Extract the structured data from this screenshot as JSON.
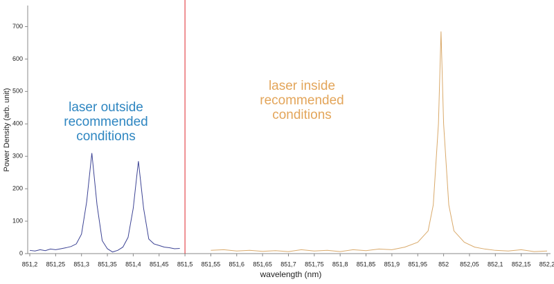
{
  "chart_data": {
    "type": "line",
    "xlabel": "wavelength (nm)",
    "ylabel": "Power Density (arb. unit)",
    "xlim": [
      851.2,
      852.2
    ],
    "ylim": [
      0,
      765
    ],
    "xticks": [
      {
        "value": 851.2,
        "label": "851,2"
      },
      {
        "value": 851.25,
        "label": "851,25"
      },
      {
        "value": 851.3,
        "label": "851,3"
      },
      {
        "value": 851.35,
        "label": "851,35"
      },
      {
        "value": 851.4,
        "label": "851,4"
      },
      {
        "value": 851.45,
        "label": "851,45"
      },
      {
        "value": 851.5,
        "label": "851,5"
      },
      {
        "value": 851.55,
        "label": "851,55"
      },
      {
        "value": 851.6,
        "label": "851,6"
      },
      {
        "value": 851.65,
        "label": "851,65"
      },
      {
        "value": 851.7,
        "label": "851,7"
      },
      {
        "value": 851.75,
        "label": "851,75"
      },
      {
        "value": 851.8,
        "label": "851,8"
      },
      {
        "value": 851.85,
        "label": "851,85"
      },
      {
        "value": 851.9,
        "label": "851,9"
      },
      {
        "value": 851.95,
        "label": "851,95"
      },
      {
        "value": 852,
        "label": "852"
      },
      {
        "value": 852.05,
        "label": "852,05"
      },
      {
        "value": 852.1,
        "label": "852,1"
      },
      {
        "value": 852.15,
        "label": "852,15"
      },
      {
        "value": 852.2,
        "label": "852,2"
      }
    ],
    "yticks": [
      0,
      100,
      200,
      300,
      400,
      500,
      600,
      700
    ],
    "vline": {
      "x": 851.5,
      "color": "#e0262b"
    },
    "series": [
      {
        "color": "#3c4394",
        "x": [
          851.2,
          851.21,
          851.22,
          851.23,
          851.24,
          851.25,
          851.26,
          851.27,
          851.28,
          851.29,
          851.3,
          851.31,
          851.32,
          851.33,
          851.34,
          851.35,
          851.36,
          851.37,
          851.38,
          851.39,
          851.4,
          851.41,
          851.42,
          851.43,
          851.44,
          851.45,
          851.46,
          851.47,
          851.48,
          851.49
        ],
        "values": [
          10,
          8,
          12,
          9,
          14,
          12,
          15,
          18,
          22,
          30,
          60,
          160,
          310,
          150,
          40,
          15,
          5,
          10,
          20,
          50,
          140,
          285,
          140,
          45,
          30,
          25,
          20,
          18,
          15,
          16
        ]
      },
      {
        "color": "#d9a96a",
        "x": [
          851.55,
          851.575,
          851.6,
          851.625,
          851.65,
          851.675,
          851.7,
          851.725,
          851.75,
          851.775,
          851.8,
          851.825,
          851.85,
          851.875,
          851.9,
          851.925,
          851.95,
          851.97,
          851.98,
          851.99,
          851.995,
          852,
          852.01,
          852.02,
          852.04,
          852.06,
          852.08,
          852.1,
          852.125,
          852.15,
          852.175,
          852.2
        ],
        "values": [
          10,
          12,
          8,
          10,
          7,
          9,
          6,
          12,
          8,
          10,
          6,
          12,
          9,
          14,
          12,
          20,
          35,
          70,
          150,
          400,
          685,
          400,
          150,
          70,
          35,
          20,
          14,
          10,
          8,
          12,
          6,
          8
        ]
      }
    ],
    "annotations": [
      {
        "lines": [
          "laser outside",
          "recommended",
          "conditions"
        ],
        "color": "#2e86c1"
      },
      {
        "lines": [
          "laser inside",
          "recommended",
          "conditions"
        ],
        "color": "#e3a55a"
      }
    ]
  }
}
